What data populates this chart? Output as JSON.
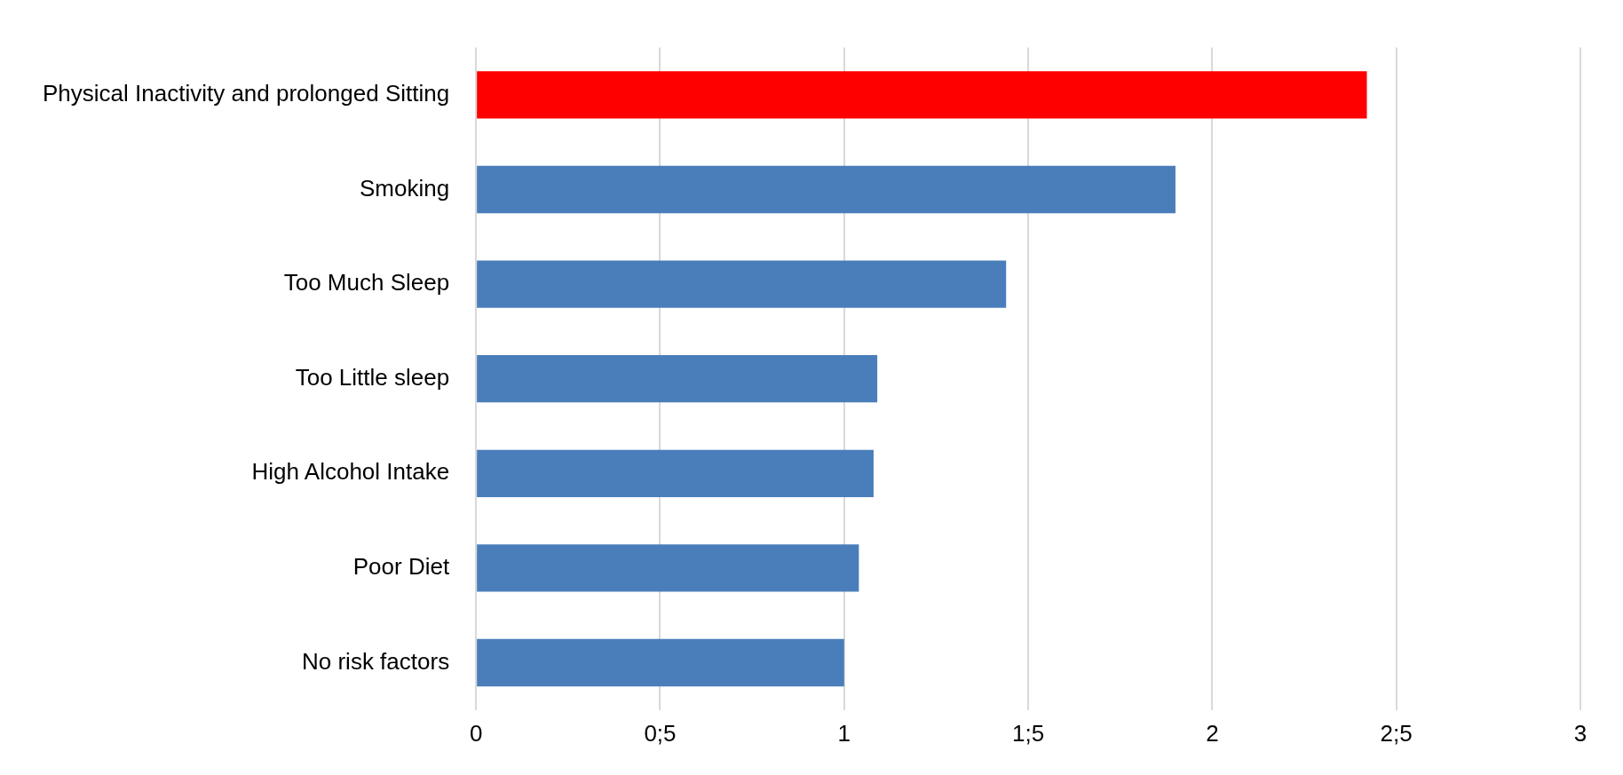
{
  "chart_data": {
    "type": "bar",
    "orientation": "horizontal",
    "categories": [
      "Physical Inactivity and prolonged Sitting",
      "Smoking",
      "Too Much Sleep",
      "Too Little sleep",
      "High Alcohol Intake",
      "Poor Diet",
      "No risk factors"
    ],
    "values": [
      2.42,
      1.9,
      1.44,
      1.09,
      1.08,
      1.04,
      1.0
    ],
    "colors": [
      "#ff0000",
      "#4a7ebb",
      "#4a7ebb",
      "#4a7ebb",
      "#4a7ebb",
      "#4a7ebb",
      "#4a7ebb"
    ],
    "xlim": [
      0,
      3
    ],
    "xticks": [
      0,
      {
        "value": 0.5,
        "label": "0;5"
      },
      1,
      {
        "value": 1.5,
        "label": "1;5"
      },
      2,
      {
        "value": 2.5,
        "label": "2;5"
      },
      3
    ],
    "grid": "x",
    "legend": false
  }
}
